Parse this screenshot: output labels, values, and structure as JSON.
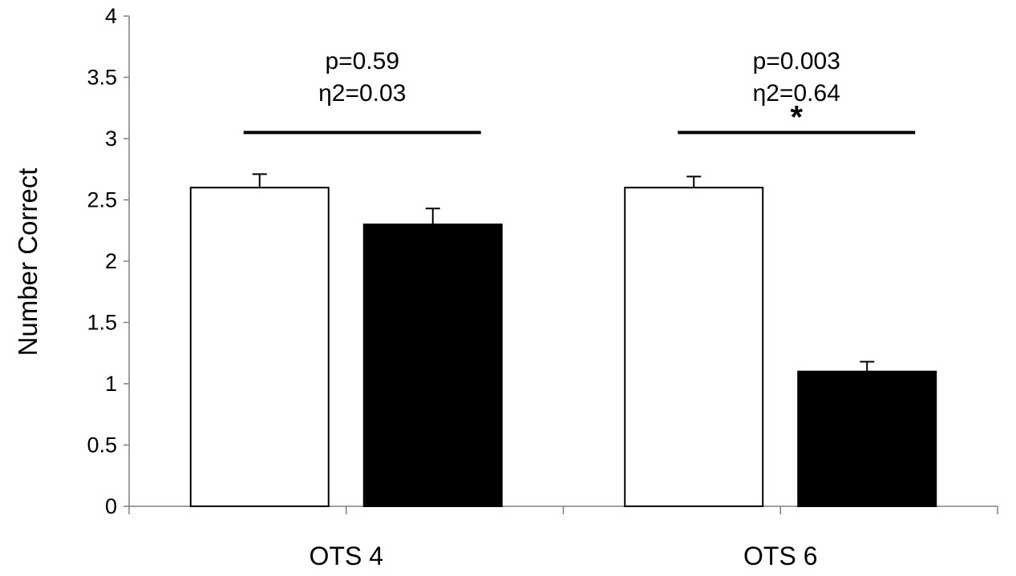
{
  "chart_data": {
    "type": "bar",
    "title": "",
    "xlabel": "",
    "ylabel": "Number Correct",
    "ylim": [
      0,
      4
    ],
    "yticks": [
      "0",
      "0.5",
      "1",
      "1.5",
      "2",
      "2.5",
      "3",
      "3.5",
      "4"
    ],
    "categories": [
      "OTS 4",
      "OTS 6"
    ],
    "series": [
      {
        "fill": "#ffffff",
        "values": [
          2.6,
          2.6
        ],
        "error": [
          0.11,
          0.09
        ]
      },
      {
        "fill": "#000000",
        "values": [
          2.3,
          1.1
        ],
        "error": [
          0.13,
          0.08
        ]
      }
    ],
    "grid": false,
    "legend": "none",
    "annotations": [
      {
        "category": "OTS 4",
        "lines": [
          "p=0.59",
          "η2=0.03"
        ],
        "significance": "",
        "bracket_level": 3.05
      },
      {
        "category": "OTS 6",
        "lines": [
          "p=0.003",
          "η2=0.64"
        ],
        "significance": "*",
        "bracket_level": 3.05
      }
    ]
  }
}
